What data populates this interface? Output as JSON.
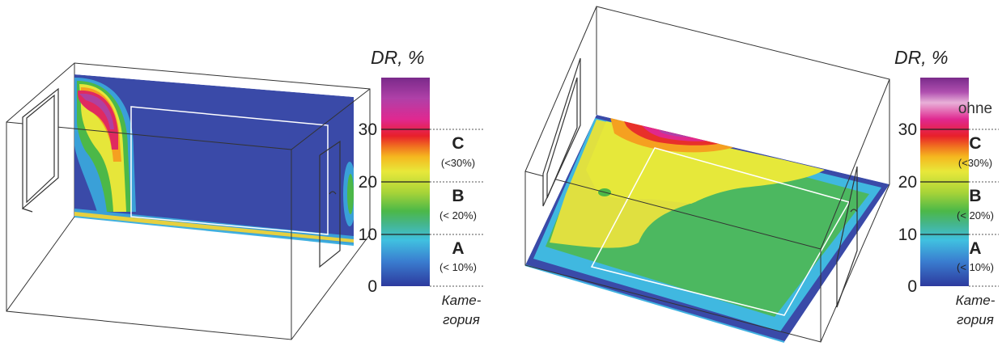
{
  "panels": [
    {
      "id": "left",
      "title": "DR, %",
      "ticks": [
        "0",
        "10",
        "20",
        "30"
      ],
      "ohne": "",
      "categories": [
        {
          "letter": "A",
          "range": "(< 10%)"
        },
        {
          "letter": "B",
          "range": "(< 20%)"
        },
        {
          "letter": "C",
          "range": "(<30%)"
        }
      ],
      "category_word_1": "Кате-",
      "category_word_2": "гория"
    },
    {
      "id": "right",
      "title": "DR, %",
      "ticks": [
        "0",
        "10",
        "20",
        "30"
      ],
      "ohne": "ohne",
      "categories": [
        {
          "letter": "A",
          "range": "(< 10%)"
        },
        {
          "letter": "B",
          "range": "(< 20%)"
        },
        {
          "letter": "C",
          "range": "(<30%)"
        }
      ],
      "category_word_1": "Кате-",
      "category_word_2": "гория"
    }
  ],
  "colors": {
    "low": "#3a4aa8",
    "cyan": "#38b6e8",
    "green": "#4fb84a",
    "yellow": "#e6e63a",
    "orange": "#f58a1f",
    "red": "#e8202a",
    "magenta": "#e0288c",
    "purple": "#8a2a8e"
  }
}
